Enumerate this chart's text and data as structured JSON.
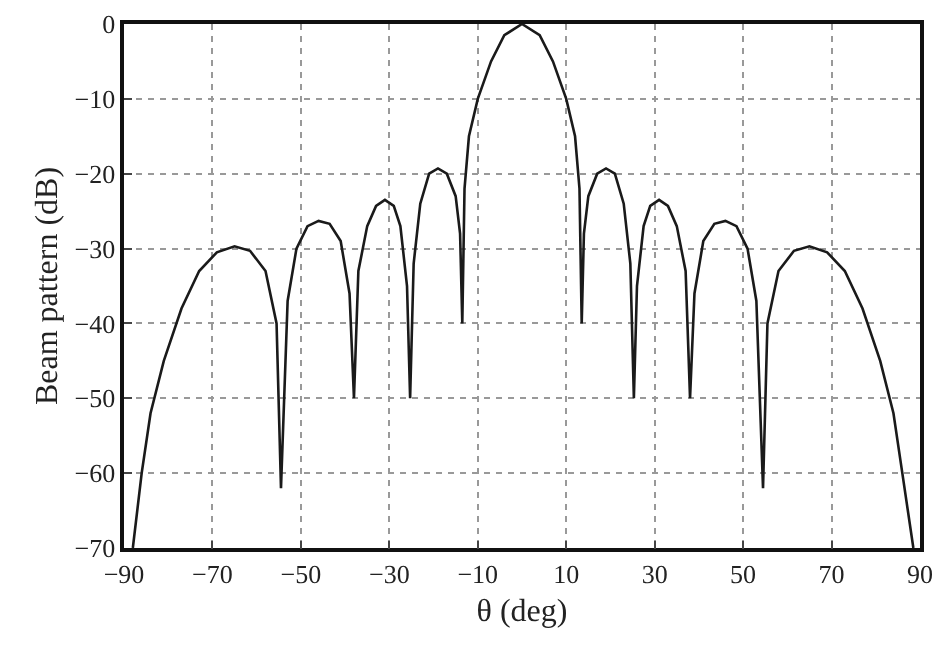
{
  "chart_data": {
    "type": "line",
    "xlabel": "θ (deg)",
    "ylabel": "Beam pattern (dB)",
    "x": [
      -88,
      -86,
      -84,
      -81,
      -77,
      -73,
      -69,
      -65,
      -61.5,
      -58,
      -55.5,
      -54.5,
      -53,
      -51,
      -48.5,
      -46,
      -43.5,
      -41,
      -39,
      -38,
      -37,
      -35,
      -33,
      -31,
      -29,
      -27.5,
      -26,
      -25.3,
      -24.5,
      -23,
      -21,
      -19,
      -17,
      -15,
      -14,
      -13.5,
      -13,
      -12,
      -10,
      -7,
      -4,
      0,
      4,
      7,
      10,
      12,
      13,
      13.5,
      14,
      15,
      17,
      19,
      21,
      23,
      24.5,
      25.3,
      26,
      27.5,
      29,
      31,
      33,
      35,
      37,
      38,
      39,
      41,
      43.5,
      46,
      48.5,
      51,
      53,
      54.5,
      55.5,
      58,
      61.5,
      65,
      69,
      73,
      77,
      81,
      84,
      86,
      88.5
    ],
    "series": [
      {
        "color": "#1a1a1a",
        "values": [
          -70,
          -60,
          -52,
          -45,
          -38,
          -33,
          -30.5,
          -29.7,
          -30.3,
          -33,
          -40,
          -62,
          -37,
          -30,
          -27,
          -26.3,
          -26.7,
          -29,
          -36,
          -50,
          -33,
          -27,
          -24.3,
          -23.5,
          -24.3,
          -27,
          -35,
          -50,
          -32,
          -24,
          -20,
          -19.3,
          -20,
          -23,
          -28,
          -40,
          -22,
          -15,
          -10,
          -5,
          -1.5,
          0,
          -1.5,
          -5,
          -10,
          -15,
          -22,
          -40,
          -28,
          -23,
          -20,
          -19.3,
          -20,
          -24,
          -32,
          -50,
          -35,
          -27,
          -24.3,
          -23.5,
          -24.3,
          -27,
          -33,
          -50,
          -36,
          -29,
          -26.7,
          -26.3,
          -27,
          -30,
          -37,
          -62,
          -40,
          -33,
          -30.3,
          -29.7,
          -30.5,
          -33,
          -38,
          -45,
          -52,
          -60,
          -70
        ]
      }
    ],
    "xlim": [
      -90,
      90
    ],
    "xticks": [
      -90,
      -70,
      -50,
      -30,
      -10,
      10,
      30,
      50,
      70,
      90
    ],
    "ylim": [
      -70,
      0
    ],
    "yticks": [
      -70,
      -60,
      -50,
      -40,
      -30,
      -20,
      -10,
      0
    ],
    "grid": true,
    "marker": "none",
    "line_style": "solid"
  }
}
